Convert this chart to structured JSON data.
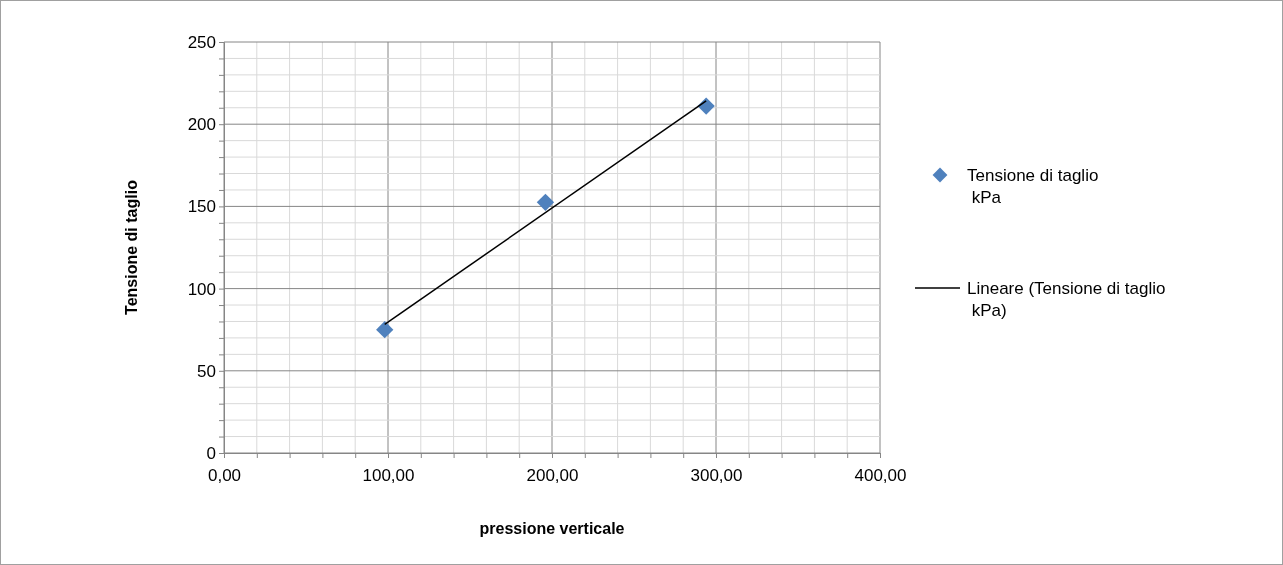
{
  "chart_data": {
    "type": "scatter",
    "xlabel": "pressione verticale",
    "ylabel": "Tensione di taglio",
    "xlim": [
      0,
      400
    ],
    "ylim": [
      0,
      250
    ],
    "xticks": [
      {
        "value": 0,
        "label": "0,00"
      },
      {
        "value": 20,
        "label": null
      },
      {
        "value": 40,
        "label": null
      },
      {
        "value": 60,
        "label": null
      },
      {
        "value": 80,
        "label": null
      },
      {
        "value": 100,
        "label": "100,00"
      },
      {
        "value": 120,
        "label": null
      },
      {
        "value": 140,
        "label": null
      },
      {
        "value": 160,
        "label": null
      },
      {
        "value": 180,
        "label": null
      },
      {
        "value": 200,
        "label": "200,00"
      },
      {
        "value": 220,
        "label": null
      },
      {
        "value": 240,
        "label": null
      },
      {
        "value": 260,
        "label": null
      },
      {
        "value": 280,
        "label": null
      },
      {
        "value": 300,
        "label": "300,00"
      },
      {
        "value": 320,
        "label": null
      },
      {
        "value": 340,
        "label": null
      },
      {
        "value": 360,
        "label": null
      },
      {
        "value": 380,
        "label": null
      },
      {
        "value": 400,
        "label": "400,00"
      }
    ],
    "yticks": [
      0,
      {
        "value": 10,
        "label": null
      },
      {
        "value": 20,
        "label": null
      },
      {
        "value": 30,
        "label": null
      },
      {
        "value": 40,
        "label": null
      },
      50,
      {
        "value": 60,
        "label": null
      },
      {
        "value": 70,
        "label": null
      },
      {
        "value": 80,
        "label": null
      },
      {
        "value": 90,
        "label": null
      },
      100,
      {
        "value": 110,
        "label": null
      },
      {
        "value": 120,
        "label": null
      },
      {
        "value": 130,
        "label": null
      },
      {
        "value": 140,
        "label": null
      },
      150,
      {
        "value": 160,
        "label": null
      },
      {
        "value": 170,
        "label": null
      },
      {
        "value": 180,
        "label": null
      },
      {
        "value": 190,
        "label": null
      },
      200,
      {
        "value": 210,
        "label": null
      },
      {
        "value": 220,
        "label": null
      },
      {
        "value": 230,
        "label": null
      },
      {
        "value": 240,
        "label": null
      },
      250
    ],
    "grid": true,
    "legend": "right",
    "series": [
      {
        "name": "Tensione di taglio\n kPa",
        "marker": "diamond",
        "color": "#4f81bd",
        "x": [
          98,
          196,
          294
        ],
        "values": [
          75,
          152.5,
          211
        ]
      },
      {
        "name": "Lineare (Tensione di taglio\n kPa)",
        "type": "line",
        "marker": "none",
        "line_style": "solid",
        "color": "#000000",
        "x": [
          98,
          294
        ],
        "values": [
          78.2,
          214.2
        ]
      }
    ]
  }
}
